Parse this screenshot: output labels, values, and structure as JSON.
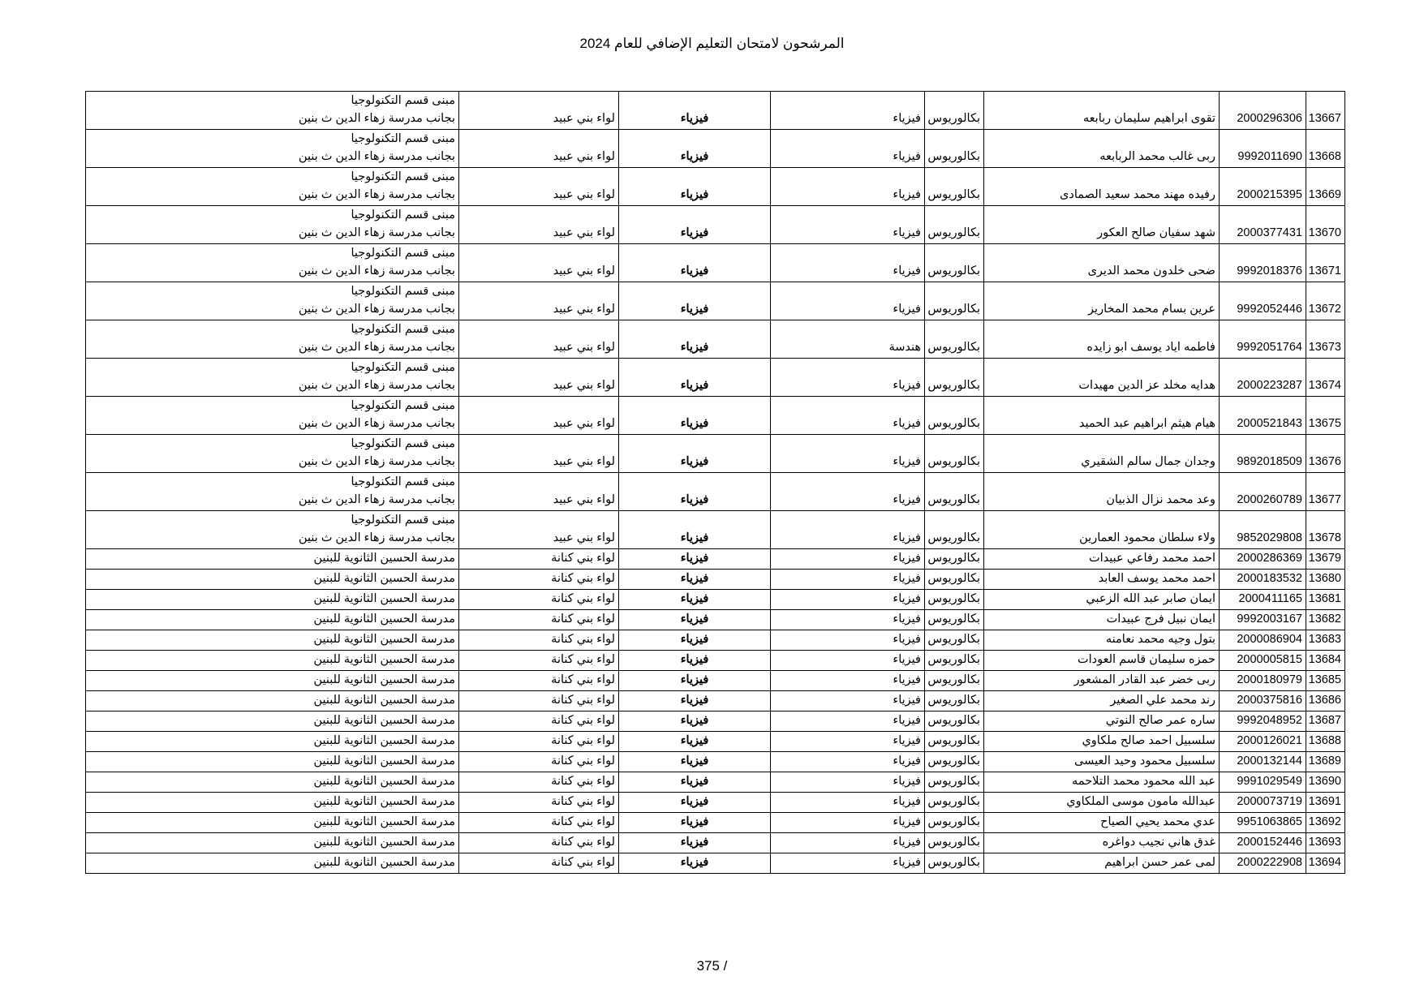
{
  "header": {
    "title": "المرشحون لامتحان التعليم الإضافي للعام 2024"
  },
  "table": {
    "rows": [
      {
        "id": 13667,
        "number": 2000296306,
        "name": "تقوى ابراهيم سليمان ربابعه",
        "degree": "بكالوريوس",
        "major": "فيزياء",
        "subject": "فيزياء",
        "district": "لواء بني عبيد",
        "location": [
          "مبنى قسم التكنولوجيا",
          "بجانب مدرسة زهاء الدين ث بنين"
        ]
      },
      {
        "id": 13668,
        "number": 9992011690,
        "name": "ربى غالب محمد الربابعه",
        "degree": "بكالوريوس",
        "major": "فيزياء",
        "subject": "فيزياء",
        "district": "لواء بني عبيد",
        "location": [
          "مبنى قسم التكنولوجيا",
          "بجانب مدرسة زهاء الدين ث بنين"
        ]
      },
      {
        "id": 13669,
        "number": 2000215395,
        "name": "رفيده مهند محمد سعيد الصمادى",
        "degree": "بكالوريوس",
        "major": "فيزياء",
        "subject": "فيزياء",
        "district": "لواء بني عبيد",
        "location": [
          "مبنى قسم التكنولوجيا",
          "بجانب مدرسة زهاء الدين ث بنين"
        ]
      },
      {
        "id": 13670,
        "number": 2000377431,
        "name": "شهد سفيان صالح العكور",
        "degree": "بكالوريوس",
        "major": "فيزياء",
        "subject": "فيزياء",
        "district": "لواء بني عبيد",
        "location": [
          "مبنى قسم التكنولوجيا",
          "بجانب مدرسة زهاء الدين ث بنين"
        ]
      },
      {
        "id": 13671,
        "number": 9992018376,
        "name": "ضحى خلدون محمد الديرى",
        "degree": "بكالوريوس",
        "major": "فيزياء",
        "subject": "فيزياء",
        "district": "لواء بني عبيد",
        "location": [
          "مبنى قسم التكنولوجيا",
          "بجانب مدرسة زهاء الدين ث بنين"
        ]
      },
      {
        "id": 13672,
        "number": 9992052446,
        "name": "عرين بسام محمد المخاريز",
        "degree": "بكالوريوس",
        "major": "فيزياء",
        "subject": "فيزياء",
        "district": "لواء بني عبيد",
        "location": [
          "مبنى قسم التكنولوجيا",
          "بجانب مدرسة زهاء الدين ث بنين"
        ]
      },
      {
        "id": 13673,
        "number": 9992051764,
        "name": "فاطمه اياد يوسف ابو زايده",
        "degree": "بكالوريوس",
        "major": "هندسة",
        "subject": "فيزياء",
        "district": "لواء بني عبيد",
        "location": [
          "مبنى قسم التكنولوجيا",
          "بجانب مدرسة زهاء الدين ث بنين"
        ]
      },
      {
        "id": 13674,
        "number": 2000223287,
        "name": "هدايه مخلد عز الدين مهيدات",
        "degree": "بكالوريوس",
        "major": "فيزياء",
        "subject": "فيزياء",
        "district": "لواء بني عبيد",
        "location": [
          "مبنى قسم التكنولوجيا",
          "بجانب مدرسة زهاء الدين ث بنين"
        ]
      },
      {
        "id": 13675,
        "number": 2000521843,
        "name": "هيام هيثم ابراهيم عبد الحميد",
        "degree": "بكالوريوس",
        "major": "فيزياء",
        "subject": "فيزياء",
        "district": "لواء بني عبيد",
        "location": [
          "مبنى قسم التكنولوجيا",
          "بجانب مدرسة زهاء الدين ث بنين"
        ]
      },
      {
        "id": 13676,
        "number": 9892018509,
        "name": "وجدان جمال سالم الشقيري",
        "degree": "بكالوريوس",
        "major": "فيزياء",
        "subject": "فيزياء",
        "district": "لواء بني عبيد",
        "location": [
          "مبنى قسم التكنولوجيا",
          "بجانب مدرسة زهاء الدين ث بنين"
        ]
      },
      {
        "id": 13677,
        "number": 2000260789,
        "name": "وعد محمد نزال الذبيان",
        "degree": "بكالوريوس",
        "major": "فيزياء",
        "subject": "فيزياء",
        "district": "لواء بني عبيد",
        "location": [
          "مبنى قسم التكنولوجيا",
          "بجانب مدرسة زهاء الدين ث بنين"
        ]
      },
      {
        "id": 13678,
        "number": 9852029808,
        "name": "ولاء سلطان محمود العمارين",
        "degree": "بكالوريوس",
        "major": "فيزياء",
        "subject": "فيزياء",
        "district": "لواء بني عبيد",
        "location": [
          "مبنى قسم التكنولوجيا",
          "بجانب مدرسة زهاء الدين ث بنين"
        ]
      },
      {
        "id": 13679,
        "number": 2000286369,
        "name": "احمد محمد رفاعي عبيدات",
        "degree": "بكالوريوس",
        "major": "فيزياء",
        "subject": "فيزياء",
        "district": "لواء بني كنانة",
        "location": [
          "مدرسة الحسين الثانوية للبنين"
        ]
      },
      {
        "id": 13680,
        "number": 2000183532,
        "name": "احمد محمد يوسف العابد",
        "degree": "بكالوريوس",
        "major": "فيزياء",
        "subject": "فيزياء",
        "district": "لواء بني كنانة",
        "location": [
          "مدرسة الحسين الثانوية للبنين"
        ]
      },
      {
        "id": 13681,
        "number": 2000411165,
        "name": "ايمان صابر عبد الله الزعبي",
        "degree": "بكالوريوس",
        "major": "فيزياء",
        "subject": "فيزياء",
        "district": "لواء بني كنانة",
        "location": [
          "مدرسة الحسين الثانوية للبنين"
        ]
      },
      {
        "id": 13682,
        "number": 9992003167,
        "name": "ايمان نبيل فرج عبيدات",
        "degree": "بكالوريوس",
        "major": "فيزياء",
        "subject": "فيزياء",
        "district": "لواء بني كنانة",
        "location": [
          "مدرسة الحسين الثانوية للبنين"
        ]
      },
      {
        "id": 13683,
        "number": 2000086904,
        "name": "بتول وجيه محمد نعامنه",
        "degree": "بكالوريوس",
        "major": "فيزياء",
        "subject": "فيزياء",
        "district": "لواء بني كنانة",
        "location": [
          "مدرسة الحسين الثانوية للبنين"
        ]
      },
      {
        "id": 13684,
        "number": 2000005815,
        "name": "حمزه سليمان قاسم العودات",
        "degree": "بكالوريوس",
        "major": "فيزياء",
        "subject": "فيزياء",
        "district": "لواء بني كنانة",
        "location": [
          "مدرسة الحسين الثانوية للبنين"
        ]
      },
      {
        "id": 13685,
        "number": 2000180979,
        "name": "ربى خضر عبد القادر المشعور",
        "degree": "بكالوريوس",
        "major": "فيزياء",
        "subject": "فيزياء",
        "district": "لواء بني كنانة",
        "location": [
          "مدرسة الحسين الثانوية للبنين"
        ]
      },
      {
        "id": 13686,
        "number": 2000375816,
        "name": "رند محمد علي الصغير",
        "degree": "بكالوريوس",
        "major": "فيزياء",
        "subject": "فيزياء",
        "district": "لواء بني كنانة",
        "location": [
          "مدرسة الحسين الثانوية للبنين"
        ]
      },
      {
        "id": 13687,
        "number": 9992048952,
        "name": "ساره عمر صالح النوتي",
        "degree": "بكالوريوس",
        "major": "فيزياء",
        "subject": "فيزياء",
        "district": "لواء بني كنانة",
        "location": [
          "مدرسة الحسين الثانوية للبنين"
        ]
      },
      {
        "id": 13688,
        "number": 2000126021,
        "name": "سلسبيل احمد صالح ملكاوي",
        "degree": "بكالوريوس",
        "major": "فيزياء",
        "subject": "فيزياء",
        "district": "لواء بني كنانة",
        "location": [
          "مدرسة الحسين الثانوية للبنين"
        ]
      },
      {
        "id": 13689,
        "number": 2000132144,
        "name": "سلسبيل محمود وحيد العيسى",
        "degree": "بكالوريوس",
        "major": "فيزياء",
        "subject": "فيزياء",
        "district": "لواء بني كنانة",
        "location": [
          "مدرسة الحسين الثانوية للبنين"
        ]
      },
      {
        "id": 13690,
        "number": 9991029549,
        "name": "عبد الله محمود محمد التلاحمه",
        "degree": "بكالوريوس",
        "major": "فيزياء",
        "subject": "فيزياء",
        "district": "لواء بني كنانة",
        "location": [
          "مدرسة الحسين الثانوية للبنين"
        ]
      },
      {
        "id": 13691,
        "number": 2000073719,
        "name": "عبدالله مامون موسى الملكاوي",
        "degree": "بكالوريوس",
        "major": "فيزياء",
        "subject": "فيزياء",
        "district": "لواء بني كنانة",
        "location": [
          "مدرسة الحسين الثانوية للبنين"
        ]
      },
      {
        "id": 13692,
        "number": 9951063865,
        "name": "عدي محمد يحيي الصياح",
        "degree": "بكالوريوس",
        "major": "فيزياء",
        "subject": "فيزياء",
        "district": "لواء بني كنانة",
        "location": [
          "مدرسة الحسين الثانوية للبنين"
        ]
      },
      {
        "id": 13693,
        "number": 2000152446,
        "name": "غدق هاني نجيب دواغره",
        "degree": "بكالوريوس",
        "major": "فيزياء",
        "subject": "فيزياء",
        "district": "لواء بني كنانة",
        "location": [
          "مدرسة الحسين الثانوية للبنين"
        ]
      },
      {
        "id": 13694,
        "number": 2000222908,
        "name": "لمى عمر حسن ابراهيم",
        "degree": "بكالوريوس",
        "major": "فيزياء",
        "subject": "فيزياء",
        "district": "لواء بني كنانة",
        "location": [
          "مدرسة الحسين الثانوية للبنين"
        ]
      }
    ]
  },
  "footer": {
    "page": "375 /"
  }
}
